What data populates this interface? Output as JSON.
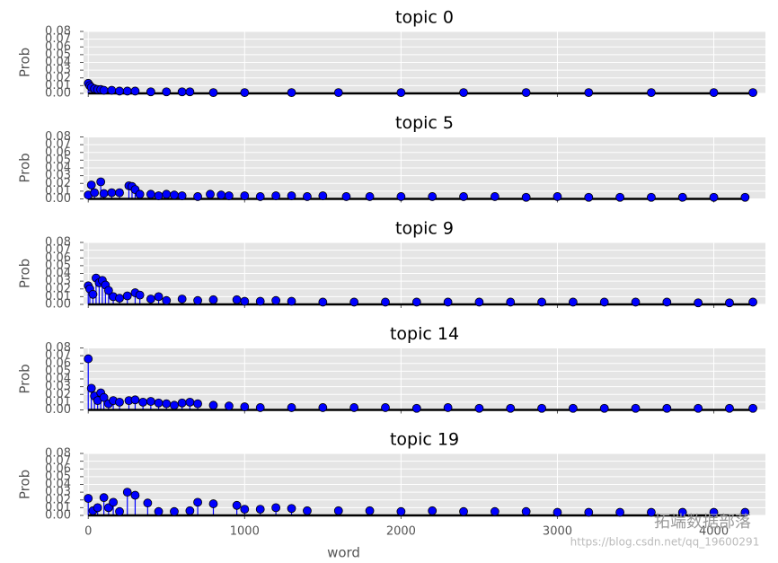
{
  "chart_data": [
    {
      "type": "stem",
      "title": "topic 0",
      "ylabel": "Prob",
      "color": "#0000ff",
      "grid": true,
      "xlim": [
        -30,
        4330
      ],
      "xticks": [
        0,
        1000,
        2000,
        3000,
        4000
      ],
      "ylim": [
        0,
        0.08
      ],
      "yticks": [
        {
          "value": 0,
          "label": "0.00"
        },
        {
          "value": 0.01,
          "label": "0.01"
        },
        {
          "value": 0.02,
          "label": "0.02"
        },
        {
          "value": 0.03,
          "label": "0.03"
        },
        {
          "value": 0.04,
          "label": "0.04"
        },
        {
          "value": 0.05,
          "label": "0.05"
        },
        {
          "value": 0.06,
          "label": "0.06"
        },
        {
          "value": 0.07,
          "label": "0.07"
        },
        {
          "value": 0.08,
          "label": "0.08"
        }
      ],
      "x": [
        0,
        10,
        20,
        40,
        60,
        80,
        100,
        150,
        200,
        250,
        300,
        400,
        500,
        600,
        650,
        800,
        1000,
        1300,
        1600,
        2000,
        2400,
        2800,
        3200,
        3600,
        4000,
        4250
      ],
      "values": [
        0.013,
        0.01,
        0.008,
        0.006,
        0.005,
        0.005,
        0.004,
        0.004,
        0.003,
        0.003,
        0.003,
        0.002,
        0.002,
        0.002,
        0.002,
        0.001,
        0.001,
        0.001,
        0.001,
        0.001,
        0.001,
        0.001,
        0.001,
        0.001,
        0.001,
        0.001
      ]
    },
    {
      "type": "stem",
      "title": "topic 5",
      "ylabel": "Prob",
      "color": "#0000ff",
      "grid": true,
      "xlim": [
        -30,
        4330
      ],
      "xticks": [
        0,
        1000,
        2000,
        3000,
        4000
      ],
      "ylim": [
        0,
        0.08
      ],
      "yticks": [
        {
          "value": 0,
          "label": "0.00"
        },
        {
          "value": 0.01,
          "label": "0.01"
        },
        {
          "value": 0.02,
          "label": "0.02"
        },
        {
          "value": 0.03,
          "label": "0.03"
        },
        {
          "value": 0.04,
          "label": "0.04"
        },
        {
          "value": 0.05,
          "label": "0.05"
        },
        {
          "value": 0.06,
          "label": "0.06"
        },
        {
          "value": 0.07,
          "label": "0.07"
        },
        {
          "value": 0.08,
          "label": "0.08"
        }
      ],
      "x": [
        0,
        20,
        40,
        80,
        100,
        150,
        200,
        260,
        280,
        300,
        330,
        400,
        450,
        500,
        550,
        600,
        700,
        780,
        850,
        900,
        1000,
        1100,
        1200,
        1300,
        1400,
        1500,
        1650,
        1800,
        2000,
        2200,
        2400,
        2600,
        2800,
        3000,
        3200,
        3400,
        3600,
        3800,
        4000,
        4200
      ],
      "values": [
        0.005,
        0.018,
        0.008,
        0.022,
        0.007,
        0.008,
        0.008,
        0.017,
        0.016,
        0.012,
        0.006,
        0.006,
        0.004,
        0.006,
        0.005,
        0.004,
        0.003,
        0.006,
        0.005,
        0.004,
        0.004,
        0.003,
        0.004,
        0.004,
        0.003,
        0.004,
        0.003,
        0.003,
        0.003,
        0.003,
        0.003,
        0.003,
        0.002,
        0.003,
        0.002,
        0.002,
        0.002,
        0.002,
        0.002,
        0.002
      ]
    },
    {
      "type": "stem",
      "title": "topic 9",
      "ylabel": "Prob",
      "color": "#0000ff",
      "grid": true,
      "xlim": [
        -30,
        4330
      ],
      "xticks": [
        0,
        1000,
        2000,
        3000,
        4000
      ],
      "ylim": [
        0,
        0.08
      ],
      "yticks": [
        {
          "value": 0,
          "label": "0.00"
        },
        {
          "value": 0.01,
          "label": "0.01"
        },
        {
          "value": 0.02,
          "label": "0.02"
        },
        {
          "value": 0.03,
          "label": "0.03"
        },
        {
          "value": 0.04,
          "label": "0.04"
        },
        {
          "value": 0.05,
          "label": "0.05"
        },
        {
          "value": 0.06,
          "label": "0.06"
        },
        {
          "value": 0.07,
          "label": "0.07"
        },
        {
          "value": 0.08,
          "label": "0.08"
        }
      ],
      "x": [
        0,
        10,
        30,
        50,
        70,
        90,
        110,
        130,
        160,
        200,
        250,
        300,
        330,
        400,
        450,
        500,
        600,
        700,
        800,
        950,
        1000,
        1100,
        1200,
        1300,
        1500,
        1700,
        1900,
        2100,
        2300,
        2500,
        2700,
        2900,
        3100,
        3300,
        3500,
        3700,
        3900,
        4100,
        4250
      ],
      "values": [
        0.024,
        0.02,
        0.013,
        0.034,
        0.028,
        0.031,
        0.025,
        0.018,
        0.01,
        0.008,
        0.011,
        0.015,
        0.012,
        0.007,
        0.01,
        0.005,
        0.007,
        0.005,
        0.006,
        0.006,
        0.004,
        0.004,
        0.005,
        0.004,
        0.003,
        0.003,
        0.003,
        0.003,
        0.003,
        0.003,
        0.003,
        0.003,
        0.003,
        0.003,
        0.003,
        0.003,
        0.002,
        0.002,
        0.003
      ]
    },
    {
      "type": "stem",
      "title": "topic 14",
      "ylabel": "Prob",
      "color": "#0000ff",
      "grid": true,
      "xlim": [
        -30,
        4330
      ],
      "xticks": [
        0,
        1000,
        2000,
        3000,
        4000
      ],
      "ylim": [
        0,
        0.08
      ],
      "yticks": [
        {
          "value": 0,
          "label": "0.00"
        },
        {
          "value": 0.01,
          "label": "0.01"
        },
        {
          "value": 0.02,
          "label": "0.02"
        },
        {
          "value": 0.03,
          "label": "0.03"
        },
        {
          "value": 0.04,
          "label": "0.04"
        },
        {
          "value": 0.05,
          "label": "0.05"
        },
        {
          "value": 0.06,
          "label": "0.06"
        },
        {
          "value": 0.07,
          "label": "0.07"
        },
        {
          "value": 0.08,
          "label": "0.08"
        }
      ],
      "x": [
        0,
        20,
        40,
        60,
        80,
        100,
        130,
        160,
        200,
        260,
        300,
        350,
        400,
        450,
        500,
        550,
        600,
        650,
        700,
        800,
        900,
        1000,
        1100,
        1300,
        1500,
        1700,
        1900,
        2100,
        2300,
        2500,
        2700,
        2900,
        3100,
        3300,
        3500,
        3700,
        3900,
        4100,
        4250
      ],
      "values": [
        0.066,
        0.028,
        0.018,
        0.012,
        0.022,
        0.016,
        0.008,
        0.012,
        0.01,
        0.012,
        0.013,
        0.01,
        0.011,
        0.009,
        0.008,
        0.006,
        0.009,
        0.01,
        0.008,
        0.006,
        0.005,
        0.004,
        0.003,
        0.003,
        0.003,
        0.003,
        0.003,
        0.002,
        0.003,
        0.002,
        0.002,
        0.002,
        0.002,
        0.002,
        0.002,
        0.002,
        0.002,
        0.002,
        0.002
      ]
    },
    {
      "type": "stem",
      "title": "topic 19",
      "ylabel": "Prob",
      "xlabel": "word",
      "color": "#0000ff",
      "grid": true,
      "xlim": [
        -30,
        4330
      ],
      "xticks": [
        0,
        1000,
        2000,
        3000,
        4000
      ],
      "ylim": [
        0,
        0.08
      ],
      "yticks": [
        {
          "value": 0,
          "label": "0.00"
        },
        {
          "value": 0.01,
          "label": "0.01"
        },
        {
          "value": 0.02,
          "label": "0.02"
        },
        {
          "value": 0.03,
          "label": "0.03"
        },
        {
          "value": 0.04,
          "label": "0.04"
        },
        {
          "value": 0.05,
          "label": "0.05"
        },
        {
          "value": 0.06,
          "label": "0.06"
        },
        {
          "value": 0.07,
          "label": "0.07"
        },
        {
          "value": 0.08,
          "label": "0.08"
        }
      ],
      "x": [
        0,
        30,
        60,
        100,
        130,
        160,
        200,
        250,
        300,
        380,
        450,
        550,
        650,
        700,
        800,
        950,
        1000,
        1100,
        1200,
        1300,
        1400,
        1600,
        1800,
        2000,
        2200,
        2400,
        2600,
        2800,
        3000,
        3200,
        3400,
        3600,
        3800,
        4000,
        4200
      ],
      "values": [
        0.022,
        0.006,
        0.01,
        0.023,
        0.01,
        0.017,
        0.005,
        0.03,
        0.026,
        0.016,
        0.005,
        0.005,
        0.006,
        0.017,
        0.015,
        0.013,
        0.008,
        0.008,
        0.01,
        0.009,
        0.006,
        0.006,
        0.006,
        0.005,
        0.006,
        0.005,
        0.005,
        0.005,
        0.004,
        0.004,
        0.004,
        0.004,
        0.004,
        0.004,
        0.004
      ]
    }
  ],
  "watermark": {
    "brand": "拓端数据部落",
    "url": "https://blog.csdn.net/qq_19600291"
  }
}
